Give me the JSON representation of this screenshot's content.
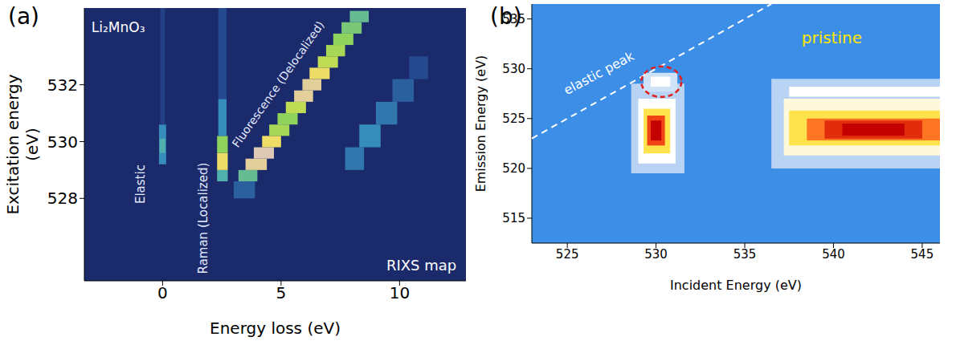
{
  "chart_data": [
    {
      "type": "heatmap",
      "panel_label": "(a)",
      "x_label": "Energy loss (eV)",
      "y_label": "Excitation energy (eV)",
      "xlim": [
        -3.3,
        12.8
      ],
      "ylim": [
        525.1,
        534.7
      ],
      "xticks": [
        0,
        5,
        10
      ],
      "yticks": [
        528,
        530,
        532
      ],
      "cells": [
        {
          "x0": -0.15,
          "x1": 0.15,
          "y0": 529.2,
          "y1": 530.6,
          "value": 0.35
        },
        {
          "x0": -0.12,
          "x1": 0.12,
          "y0": 529.6,
          "y1": 530.1,
          "value": 0.45
        },
        {
          "x0": -0.1,
          "x1": 0.1,
          "y0": 530.6,
          "y1": 534.7,
          "value": 0.15
        },
        {
          "x0": 2.3,
          "x1": 2.75,
          "y0": 528.6,
          "y1": 529.0,
          "value": 0.45
        },
        {
          "x0": 2.3,
          "x1": 2.75,
          "y0": 529.0,
          "y1": 529.6,
          "value": 0.85
        },
        {
          "x0": 2.3,
          "x1": 2.75,
          "y0": 529.6,
          "y1": 530.2,
          "value": 0.6
        },
        {
          "x0": 2.35,
          "x1": 2.7,
          "y0": 530.2,
          "y1": 531.5,
          "value": 0.35
        },
        {
          "x0": 2.35,
          "x1": 2.7,
          "y0": 531.5,
          "y1": 534.7,
          "value": 0.2
        },
        {
          "x0": 3.0,
          "x1": 3.9,
          "y0": 528.0,
          "y1": 528.6,
          "value": 0.25
        },
        {
          "x0": 3.2,
          "x1": 4.0,
          "y0": 528.6,
          "y1": 529.0,
          "value": 0.5
        },
        {
          "x0": 3.5,
          "x1": 4.4,
          "y0": 529.0,
          "y1": 529.4,
          "value": 0.95
        },
        {
          "x0": 3.85,
          "x1": 4.7,
          "y0": 529.4,
          "y1": 529.8,
          "value": 1.0
        },
        {
          "x0": 4.2,
          "x1": 5.0,
          "y0": 529.8,
          "y1": 530.2,
          "value": 0.85
        },
        {
          "x0": 4.5,
          "x1": 5.35,
          "y0": 530.2,
          "y1": 530.6,
          "value": 0.65
        },
        {
          "x0": 4.85,
          "x1": 5.7,
          "y0": 530.6,
          "y1": 531.0,
          "value": 0.6
        },
        {
          "x0": 5.2,
          "x1": 6.05,
          "y0": 531.0,
          "y1": 531.4,
          "value": 0.7
        },
        {
          "x0": 5.55,
          "x1": 6.35,
          "y0": 531.4,
          "y1": 531.8,
          "value": 0.95
        },
        {
          "x0": 5.9,
          "x1": 6.7,
          "y0": 531.8,
          "y1": 532.2,
          "value": 0.95
        },
        {
          "x0": 6.2,
          "x1": 7.05,
          "y0": 532.2,
          "y1": 532.6,
          "value": 0.85
        },
        {
          "x0": 6.55,
          "x1": 7.4,
          "y0": 532.6,
          "y1": 533.0,
          "value": 0.7
        },
        {
          "x0": 6.9,
          "x1": 7.7,
          "y0": 533.0,
          "y1": 533.4,
          "value": 0.65
        },
        {
          "x0": 7.2,
          "x1": 8.05,
          "y0": 533.4,
          "y1": 533.8,
          "value": 0.6
        },
        {
          "x0": 7.55,
          "x1": 8.4,
          "y0": 533.8,
          "y1": 534.2,
          "value": 0.55
        },
        {
          "x0": 7.9,
          "x1": 8.7,
          "y0": 534.2,
          "y1": 534.6,
          "value": 0.5
        },
        {
          "x0": 7.7,
          "x1": 8.5,
          "y0": 529.0,
          "y1": 529.8,
          "value": 0.3
        },
        {
          "x0": 8.3,
          "x1": 9.2,
          "y0": 529.8,
          "y1": 530.6,
          "value": 0.35
        },
        {
          "x0": 9.0,
          "x1": 9.9,
          "y0": 530.6,
          "y1": 531.4,
          "value": 0.3
        },
        {
          "x0": 9.7,
          "x1": 10.6,
          "y0": 531.4,
          "y1": 532.2,
          "value": 0.25
        },
        {
          "x0": 10.4,
          "x1": 11.2,
          "y0": 532.2,
          "y1": 533.0,
          "value": 0.2
        }
      ],
      "annotations": [
        {
          "text": "Li₂MnO₃",
          "x": -3.0,
          "y": 534.0,
          "color": "#ffffff"
        },
        {
          "text": "Elastic",
          "x": -0.9,
          "y": 528.5,
          "color": "#e6ecff"
        },
        {
          "text": "Raman (Localized)",
          "x": 1.75,
          "y": 527.3,
          "color": "#e6ecff"
        },
        {
          "text": "Fluorescence (Delocalized)",
          "x": 4.9,
          "y": 532.0,
          "color": "#e6ecff"
        },
        {
          "text": "RIXS map",
          "x": 12.4,
          "y": 525.6,
          "color": "#ffffff"
        }
      ]
    },
    {
      "type": "heatmap",
      "panel_label": "(b)",
      "x_label": "Incident Energy (eV)",
      "y_label": "Emission Energy (eV)",
      "xlim": [
        523,
        546
      ],
      "ylim": [
        512.5,
        536.5
      ],
      "xticks": [
        525,
        530,
        535,
        540,
        545
      ],
      "yticks": [
        515,
        520,
        525,
        530,
        535
      ],
      "cells": [
        {
          "x0": 528.6,
          "x1": 531.6,
          "y0": 519.5,
          "y1": 528.5,
          "value": 0.15
        },
        {
          "x0": 529.0,
          "x1": 531.1,
          "y0": 520.5,
          "y1": 527.0,
          "value": 0.3
        },
        {
          "x0": 529.3,
          "x1": 530.8,
          "y0": 521.5,
          "y1": 526.0,
          "value": 0.55
        },
        {
          "x0": 529.5,
          "x1": 530.5,
          "y0": 522.3,
          "y1": 525.3,
          "value": 0.85
        },
        {
          "x0": 529.7,
          "x1": 530.3,
          "y0": 522.8,
          "y1": 524.8,
          "value": 1.0
        },
        {
          "x0": 529.3,
          "x1": 531.2,
          "y0": 527.7,
          "y1": 529.6,
          "value": 0.2
        },
        {
          "x0": 529.7,
          "x1": 530.8,
          "y0": 528.2,
          "y1": 529.2,
          "value": 0.3
        },
        {
          "x0": 536.5,
          "x1": 546.0,
          "y0": 520.0,
          "y1": 529.0,
          "value": 0.15
        },
        {
          "x0": 537.5,
          "x1": 546.0,
          "y0": 527.2,
          "y1": 528.2,
          "value": 0.3
        },
        {
          "x0": 537.2,
          "x1": 546.0,
          "y0": 521.3,
          "y1": 527.0,
          "value": 0.35
        },
        {
          "x0": 537.5,
          "x1": 546.0,
          "y0": 522.3,
          "y1": 525.8,
          "value": 0.55
        },
        {
          "x0": 538.5,
          "x1": 546.0,
          "y0": 522.8,
          "y1": 525.0,
          "value": 0.75
        },
        {
          "x0": 539.5,
          "x1": 545.0,
          "y0": 523.0,
          "y1": 524.8,
          "value": 0.9
        },
        {
          "x0": 540.5,
          "x1": 544.0,
          "y0": 523.3,
          "y1": 524.5,
          "value": 1.0
        }
      ],
      "lines": [
        {
          "x": [
            523,
            536.5
          ],
          "y": [
            523,
            536.5
          ],
          "color": "#ffffff",
          "line_style": "dashed"
        }
      ],
      "highlight": {
        "x": 530.3,
        "y": 528.7,
        "color": "#e02020"
      },
      "annotations": [
        {
          "text": "elastic peak",
          "x": 526.8,
          "y": 529.5,
          "color": "#ffffff"
        },
        {
          "text": "pristine",
          "x": 538.2,
          "y": 533.0,
          "color": "#ffe600"
        }
      ]
    }
  ]
}
